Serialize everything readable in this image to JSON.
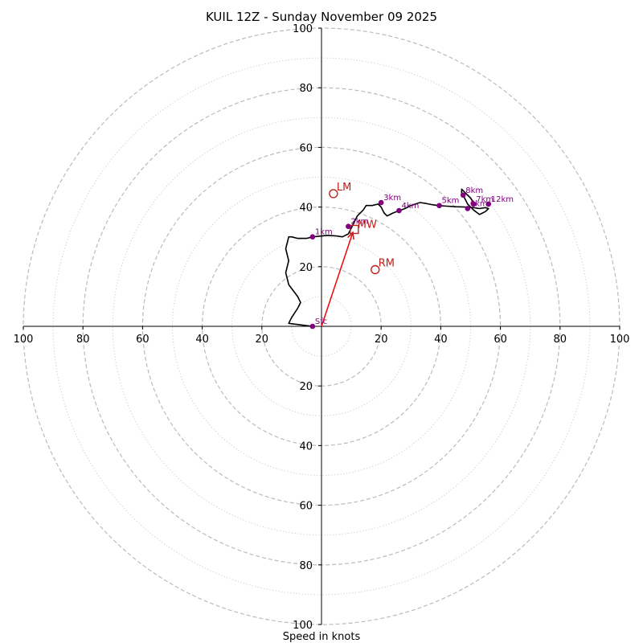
{
  "chart_data": {
    "type": "hodograph",
    "title": "KUIL 12Z - Sunday November 09 2025",
    "xlabel": "Speed in knots",
    "ylabel": "",
    "xlim": [
      -100,
      100
    ],
    "ylim": [
      -100,
      100
    ],
    "major_rings": [
      20,
      40,
      60,
      80,
      100
    ],
    "minor_rings": [
      10,
      30,
      50,
      70,
      90
    ],
    "x_tick_labels": [
      "100",
      "80",
      "60",
      "40",
      "20",
      "20",
      "40",
      "60",
      "80",
      "100"
    ],
    "x_tick_values": [
      -100,
      -80,
      -60,
      -40,
      -20,
      20,
      40,
      60,
      80,
      100
    ],
    "y_tick_labels": [
      "100",
      "80",
      "60",
      "40",
      "20",
      "20",
      "40",
      "60",
      "80",
      "100"
    ],
    "y_tick_values": [
      100,
      80,
      60,
      40,
      20,
      -20,
      -40,
      -60,
      -80,
      -100
    ],
    "hodograph_trace": {
      "u": [
        -3,
        -11,
        -10,
        -8,
        -7,
        -8,
        -11,
        -12,
        -11,
        -12,
        -11,
        -10,
        -8,
        -5,
        -3,
        2,
        5,
        7,
        9,
        10,
        11,
        12,
        14,
        15,
        17,
        19,
        20,
        21,
        22,
        23,
        24,
        26,
        28,
        30,
        33,
        35,
        37,
        39,
        42,
        45,
        48,
        51,
        53,
        55,
        56,
        55,
        53,
        51,
        49,
        48,
        47,
        47,
        48,
        50,
        51
      ],
      "v": [
        0,
        1,
        3,
        6,
        8,
        10,
        14,
        18,
        22,
        26,
        30,
        30,
        29.5,
        29.5,
        30,
        30.5,
        30.3,
        30,
        31,
        33,
        35,
        37,
        39,
        40.5,
        40.5,
        41,
        40,
        38,
        37,
        37.5,
        38,
        38.8,
        39.5,
        40.5,
        41.5,
        41.2,
        40.8,
        40.5,
        40.3,
        40.1,
        40,
        39.8,
        39.5,
        39.8,
        39.5,
        38.5,
        37.5,
        39,
        41,
        43,
        44.5,
        46,
        45,
        43,
        41.5
      ]
    },
    "height_markers": [
      {
        "label": "Sfc",
        "u": -3,
        "v": 0
      },
      {
        "label": "1km",
        "u": -3,
        "v": 30
      },
      {
        "label": "2km",
        "u": 9,
        "v": 33.5
      },
      {
        "label": "3km",
        "u": 20,
        "v": 41.5
      },
      {
        "label": "4km",
        "u": 26,
        "v": 38.8
      },
      {
        "label": "5km",
        "u": 39.5,
        "v": 40.5
      },
      {
        "label": "6km",
        "u": 49,
        "v": 39.5
      },
      {
        "label": "7km",
        "u": 51,
        "v": 41
      },
      {
        "label": "8km",
        "u": 47.5,
        "v": 44
      },
      {
        "label": "12km",
        "u": 56,
        "v": 41
      }
    ],
    "storm_motions": [
      {
        "label": "LM",
        "u": 4,
        "v": 44.5,
        "shape": "circle"
      },
      {
        "label": "RM",
        "u": 18,
        "v": 19,
        "shape": "circle"
      },
      {
        "label": "MW",
        "u": 11,
        "v": 32.5,
        "shape": "square"
      }
    ],
    "shear_vector": {
      "from": [
        0,
        0
      ],
      "to": [
        10.5,
        31.5
      ]
    },
    "colors": {
      "trace": "#000000",
      "height_marker": "#800080",
      "storm_motion": "#c0201a",
      "shear_vector": "#ee1111",
      "major_ring": "#bbbbbb",
      "minor_ring": "#cccccc"
    }
  }
}
